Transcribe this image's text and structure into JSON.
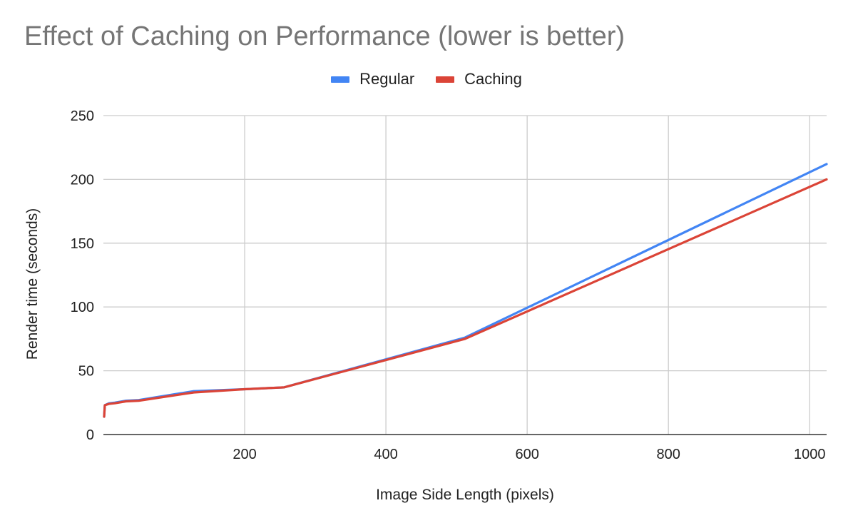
{
  "chart_data": {
    "type": "line",
    "title": "Effect of Caching on Performance (lower is better)",
    "xlabel": "Image Side Length (pixels)",
    "ylabel": "Render time (seconds)",
    "xlim": [
      0,
      1024
    ],
    "ylim": [
      0,
      250
    ],
    "x_ticks": [
      200,
      400,
      600,
      800,
      1000
    ],
    "y_ticks": [
      0,
      50,
      100,
      150,
      200,
      250
    ],
    "grid": true,
    "legend_position": "top",
    "series": [
      {
        "name": "Regular",
        "color": "#4285F4",
        "points": [
          [
            1,
            14
          ],
          [
            2,
            23
          ],
          [
            8,
            24.5
          ],
          [
            16,
            25
          ],
          [
            32,
            26.5
          ],
          [
            50,
            27
          ],
          [
            128,
            34
          ],
          [
            200,
            35.5
          ],
          [
            256,
            37
          ],
          [
            512,
            76
          ],
          [
            1024,
            212
          ]
        ]
      },
      {
        "name": "Caching",
        "color": "#DB4437",
        "points": [
          [
            1,
            14
          ],
          [
            2,
            23
          ],
          [
            8,
            24
          ],
          [
            16,
            24.5
          ],
          [
            32,
            26
          ],
          [
            50,
            26.5
          ],
          [
            128,
            33
          ],
          [
            200,
            35.5
          ],
          [
            256,
            37
          ],
          [
            512,
            75
          ],
          [
            1024,
            200
          ]
        ]
      }
    ]
  }
}
